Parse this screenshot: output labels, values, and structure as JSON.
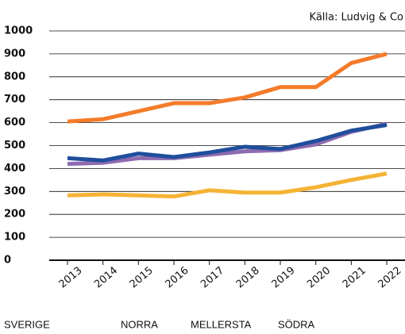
{
  "chart_data": {
    "type": "line",
    "source": "Källa: Ludvig & Co",
    "categories": [
      "2013",
      "2014",
      "2015",
      "2016",
      "2017",
      "2018",
      "2019",
      "2020",
      "2021",
      "2022"
    ],
    "series": [
      {
        "name": "SVERIGE",
        "color": "#1f4e9c",
        "values": [
          445,
          435,
          465,
          450,
          470,
          495,
          485,
          520,
          565,
          590
        ]
      },
      {
        "name": "NORRA",
        "color": "#f5b335",
        "values": [
          283,
          287,
          283,
          278,
          305,
          295,
          295,
          318,
          350,
          378
        ]
      },
      {
        "name": "MELLERSTA",
        "color": "#8e6bb0",
        "values": [
          420,
          425,
          445,
          445,
          460,
          475,
          480,
          505,
          560,
          595
        ]
      },
      {
        "name": "SÖDRA",
        "color": "#f47b2a",
        "values": [
          605,
          615,
          650,
          685,
          685,
          710,
          755,
          755,
          860,
          900
        ]
      }
    ],
    "ylim": [
      0,
      1000
    ],
    "yticks": [
      0,
      100,
      200,
      300,
      400,
      500,
      600,
      700,
      800,
      900,
      1000
    ],
    "grid": true
  }
}
